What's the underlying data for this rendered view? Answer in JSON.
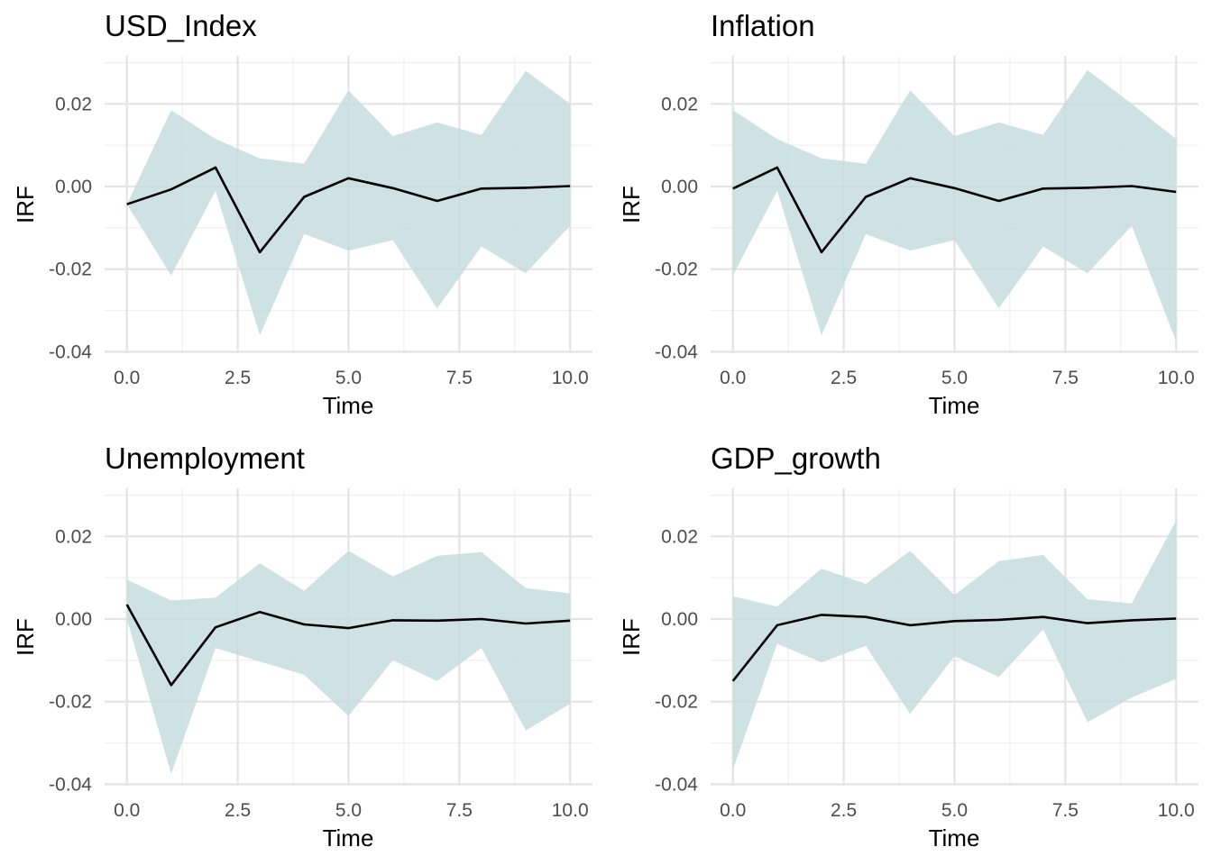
{
  "chart_data": [
    {
      "type": "area",
      "title": "USD_Index",
      "xlabel": "Time",
      "ylabel": "IRF",
      "xlim": [
        0,
        10
      ],
      "ylim": [
        -0.04,
        0.03
      ],
      "xticks": [
        "0.0",
        "2.5",
        "5.0",
        "7.5",
        "10.0"
      ],
      "yticks": [
        "-0.04",
        "-0.02",
        "0.00",
        "0.02"
      ],
      "grid": true,
      "x": [
        0,
        1,
        2,
        3,
        4,
        5,
        6,
        7,
        8,
        9,
        10
      ],
      "irf": [
        -0.0043,
        -0.0007,
        0.0046,
        -0.0159,
        -0.0025,
        0.002,
        -0.0004,
        -0.0035,
        -0.0005,
        -0.0003,
        0.0001
      ],
      "lower": [
        -0.0043,
        -0.0215,
        -0.001,
        -0.036,
        -0.0115,
        -0.0155,
        -0.013,
        -0.0295,
        -0.0145,
        -0.021,
        -0.0095
      ],
      "upper": [
        -0.0043,
        0.0185,
        0.0115,
        0.0068,
        0.0055,
        0.0233,
        0.0122,
        0.0155,
        0.0125,
        0.028,
        0.02
      ]
    },
    {
      "type": "area",
      "title": "Inflation",
      "xlabel": "Time",
      "ylabel": "IRF",
      "xlim": [
        0,
        10
      ],
      "ylim": [
        -0.04,
        0.03
      ],
      "xticks": [
        "0.0",
        "2.5",
        "5.0",
        "7.5",
        "10.0"
      ],
      "yticks": [
        "-0.04",
        "-0.02",
        "0.00",
        "0.02"
      ],
      "grid": true,
      "x": [
        0,
        1,
        2,
        3,
        4,
        5,
        6,
        7,
        8,
        9,
        10
      ],
      "irf": [
        -0.0005,
        0.0046,
        -0.0159,
        -0.0025,
        0.002,
        -0.0004,
        -0.0035,
        -0.0005,
        -0.0003,
        0.0001,
        -0.0013
      ],
      "lower": [
        -0.0215,
        -0.001,
        -0.036,
        -0.0115,
        -0.0155,
        -0.013,
        -0.0295,
        -0.0145,
        -0.021,
        -0.0095,
        -0.0375
      ],
      "upper": [
        0.0185,
        0.0115,
        0.0068,
        0.0055,
        0.0233,
        0.0122,
        0.0155,
        0.0125,
        0.0282,
        0.02,
        0.0115
      ]
    },
    {
      "type": "area",
      "title": "Unemployment",
      "xlabel": "Time",
      "ylabel": "IRF",
      "xlim": [
        0,
        10
      ],
      "ylim": [
        -0.04,
        0.03
      ],
      "xticks": [
        "0.0",
        "2.5",
        "5.0",
        "7.5",
        "10.0"
      ],
      "yticks": [
        "-0.04",
        "-0.02",
        "0.00",
        "0.02"
      ],
      "grid": true,
      "x": [
        0,
        1,
        2,
        3,
        4,
        5,
        6,
        7,
        8,
        9,
        10
      ],
      "irf": [
        0.0035,
        -0.016,
        -0.002,
        0.0017,
        -0.0013,
        -0.0022,
        -0.0003,
        -0.0004,
        0.0,
        -0.0011,
        -0.0004
      ],
      "lower": [
        0.0,
        -0.0375,
        -0.007,
        -0.0103,
        -0.0135,
        -0.0235,
        -0.01,
        -0.015,
        -0.007,
        -0.027,
        -0.0205
      ],
      "upper": [
        0.0095,
        0.0045,
        0.0052,
        0.0135,
        0.0068,
        0.0165,
        0.0103,
        0.0153,
        0.0162,
        0.0075,
        0.0062
      ]
    },
    {
      "type": "area",
      "title": "GDP_growth",
      "xlabel": "Time",
      "ylabel": "IRF",
      "xlim": [
        0,
        10
      ],
      "ylim": [
        -0.04,
        0.03
      ],
      "xticks": [
        "0.0",
        "2.5",
        "5.0",
        "7.5",
        "10.0"
      ],
      "yticks": [
        "-0.04",
        "-0.02",
        "0.00",
        "0.02"
      ],
      "grid": true,
      "x": [
        0,
        1,
        2,
        3,
        4,
        5,
        6,
        7,
        8,
        9,
        10
      ],
      "irf": [
        -0.015,
        -0.0015,
        0.001,
        0.0005,
        -0.0015,
        -0.0005,
        -0.0002,
        0.0005,
        -0.001,
        -0.0003,
        0.0001
      ],
      "lower": [
        -0.0365,
        -0.006,
        -0.0105,
        -0.0065,
        -0.023,
        -0.009,
        -0.014,
        -0.0025,
        -0.025,
        -0.019,
        -0.0145
      ],
      "upper": [
        0.0055,
        0.003,
        0.0122,
        0.0085,
        0.0165,
        0.0058,
        0.014,
        0.0155,
        0.0048,
        0.0038,
        0.0238
      ]
    }
  ]
}
